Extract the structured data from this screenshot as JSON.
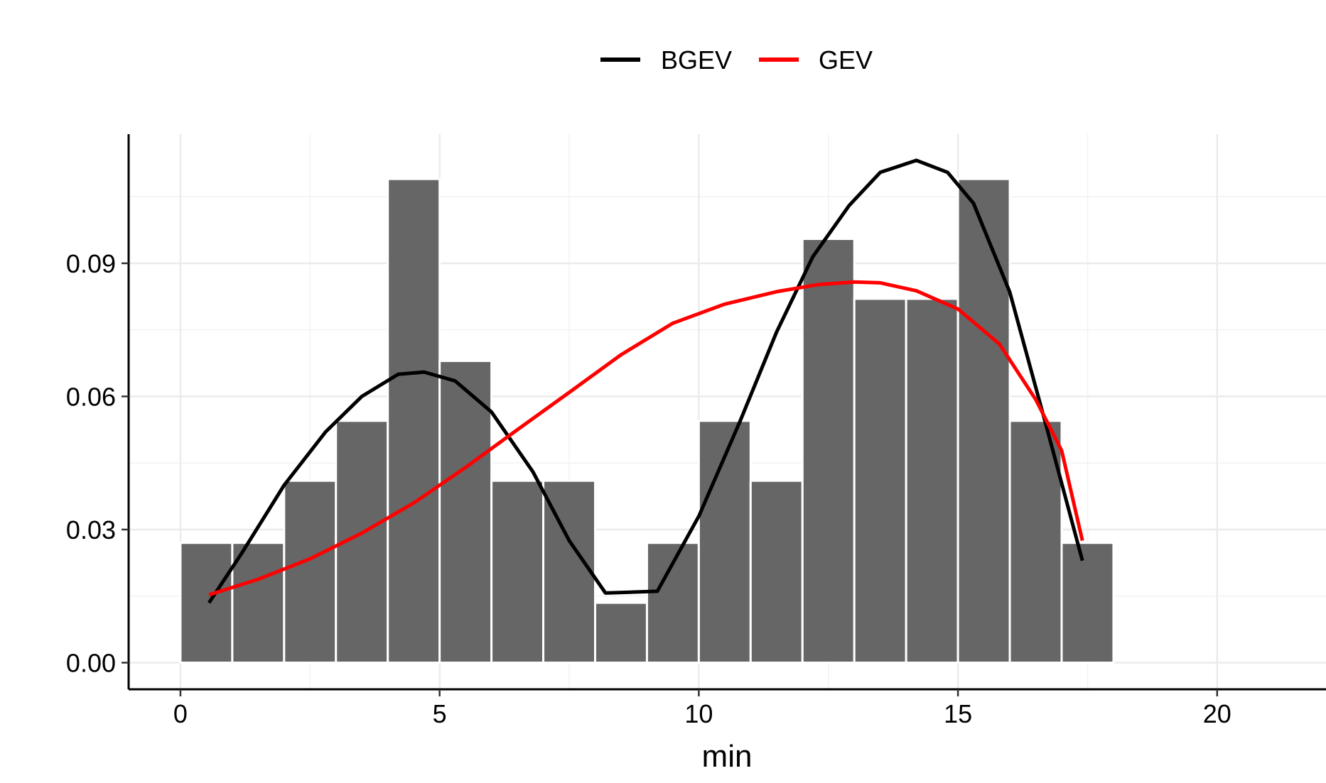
{
  "chart_data": {
    "type": "bar",
    "xlabel": "min",
    "ylabel": "",
    "xlim": [
      -1,
      22.1
    ],
    "ylim": [
      -0.006,
      0.1191
    ],
    "x_ticks": [
      0,
      5,
      10,
      15,
      20
    ],
    "x_tick_labels": [
      "0",
      "5",
      "10",
      "15",
      "20"
    ],
    "y_ticks": [
      0,
      0.03,
      0.06,
      0.09
    ],
    "y_tick_labels": [
      "0.00",
      "0.03",
      "0.06",
      "0.09"
    ],
    "grid": true,
    "legend_position": "top",
    "histogram": {
      "bin_width": 1,
      "bin_starts": [
        0,
        1,
        2,
        3,
        4,
        5,
        6,
        7,
        8,
        9,
        10,
        11,
        12,
        13,
        14,
        15,
        16,
        17
      ],
      "values": [
        0.027,
        0.027,
        0.041,
        0.0545,
        0.109,
        0.068,
        0.041,
        0.041,
        0.0135,
        0.027,
        0.0545,
        0.041,
        0.0955,
        0.082,
        0.082,
        0.109,
        0.0545,
        0.027
      ],
      "color": "#666666"
    },
    "series": [
      {
        "name": "BGEV",
        "color": "#000000",
        "x": [
          0.55,
          1.2,
          2,
          2.8,
          3.5,
          4.2,
          4.7,
          5.3,
          6,
          6.8,
          7.5,
          8.2,
          9.2,
          10,
          10.8,
          11.5,
          12.2,
          12.9,
          13.5,
          14.2,
          14.8,
          15.3,
          16,
          16.7,
          17.4
        ],
        "y": [
          0.0135,
          0.025,
          0.04,
          0.052,
          0.06,
          0.065,
          0.0655,
          0.0635,
          0.0565,
          0.043,
          0.0275,
          0.0157,
          0.0161,
          0.033,
          0.0545,
          0.0745,
          0.0915,
          0.103,
          0.1105,
          0.1132,
          0.1105,
          0.1035,
          0.0835,
          0.0535,
          0.023
        ]
      },
      {
        "name": "GEV",
        "color": "#ff0000",
        "x": [
          0.55,
          1.5,
          2.5,
          3.5,
          4.5,
          5.5,
          6.5,
          7.5,
          8.5,
          9.5,
          10.5,
          11.5,
          12.3,
          13,
          13.5,
          14.2,
          15,
          15.8,
          16.5,
          17,
          17.4
        ],
        "y": [
          0.0153,
          0.0188,
          0.0234,
          0.0292,
          0.036,
          0.044,
          0.0525,
          0.0609,
          0.0694,
          0.0765,
          0.0808,
          0.0836,
          0.0852,
          0.0858,
          0.0856,
          0.0838,
          0.0797,
          0.0718,
          0.0593,
          0.0478,
          0.0275
        ]
      }
    ]
  }
}
